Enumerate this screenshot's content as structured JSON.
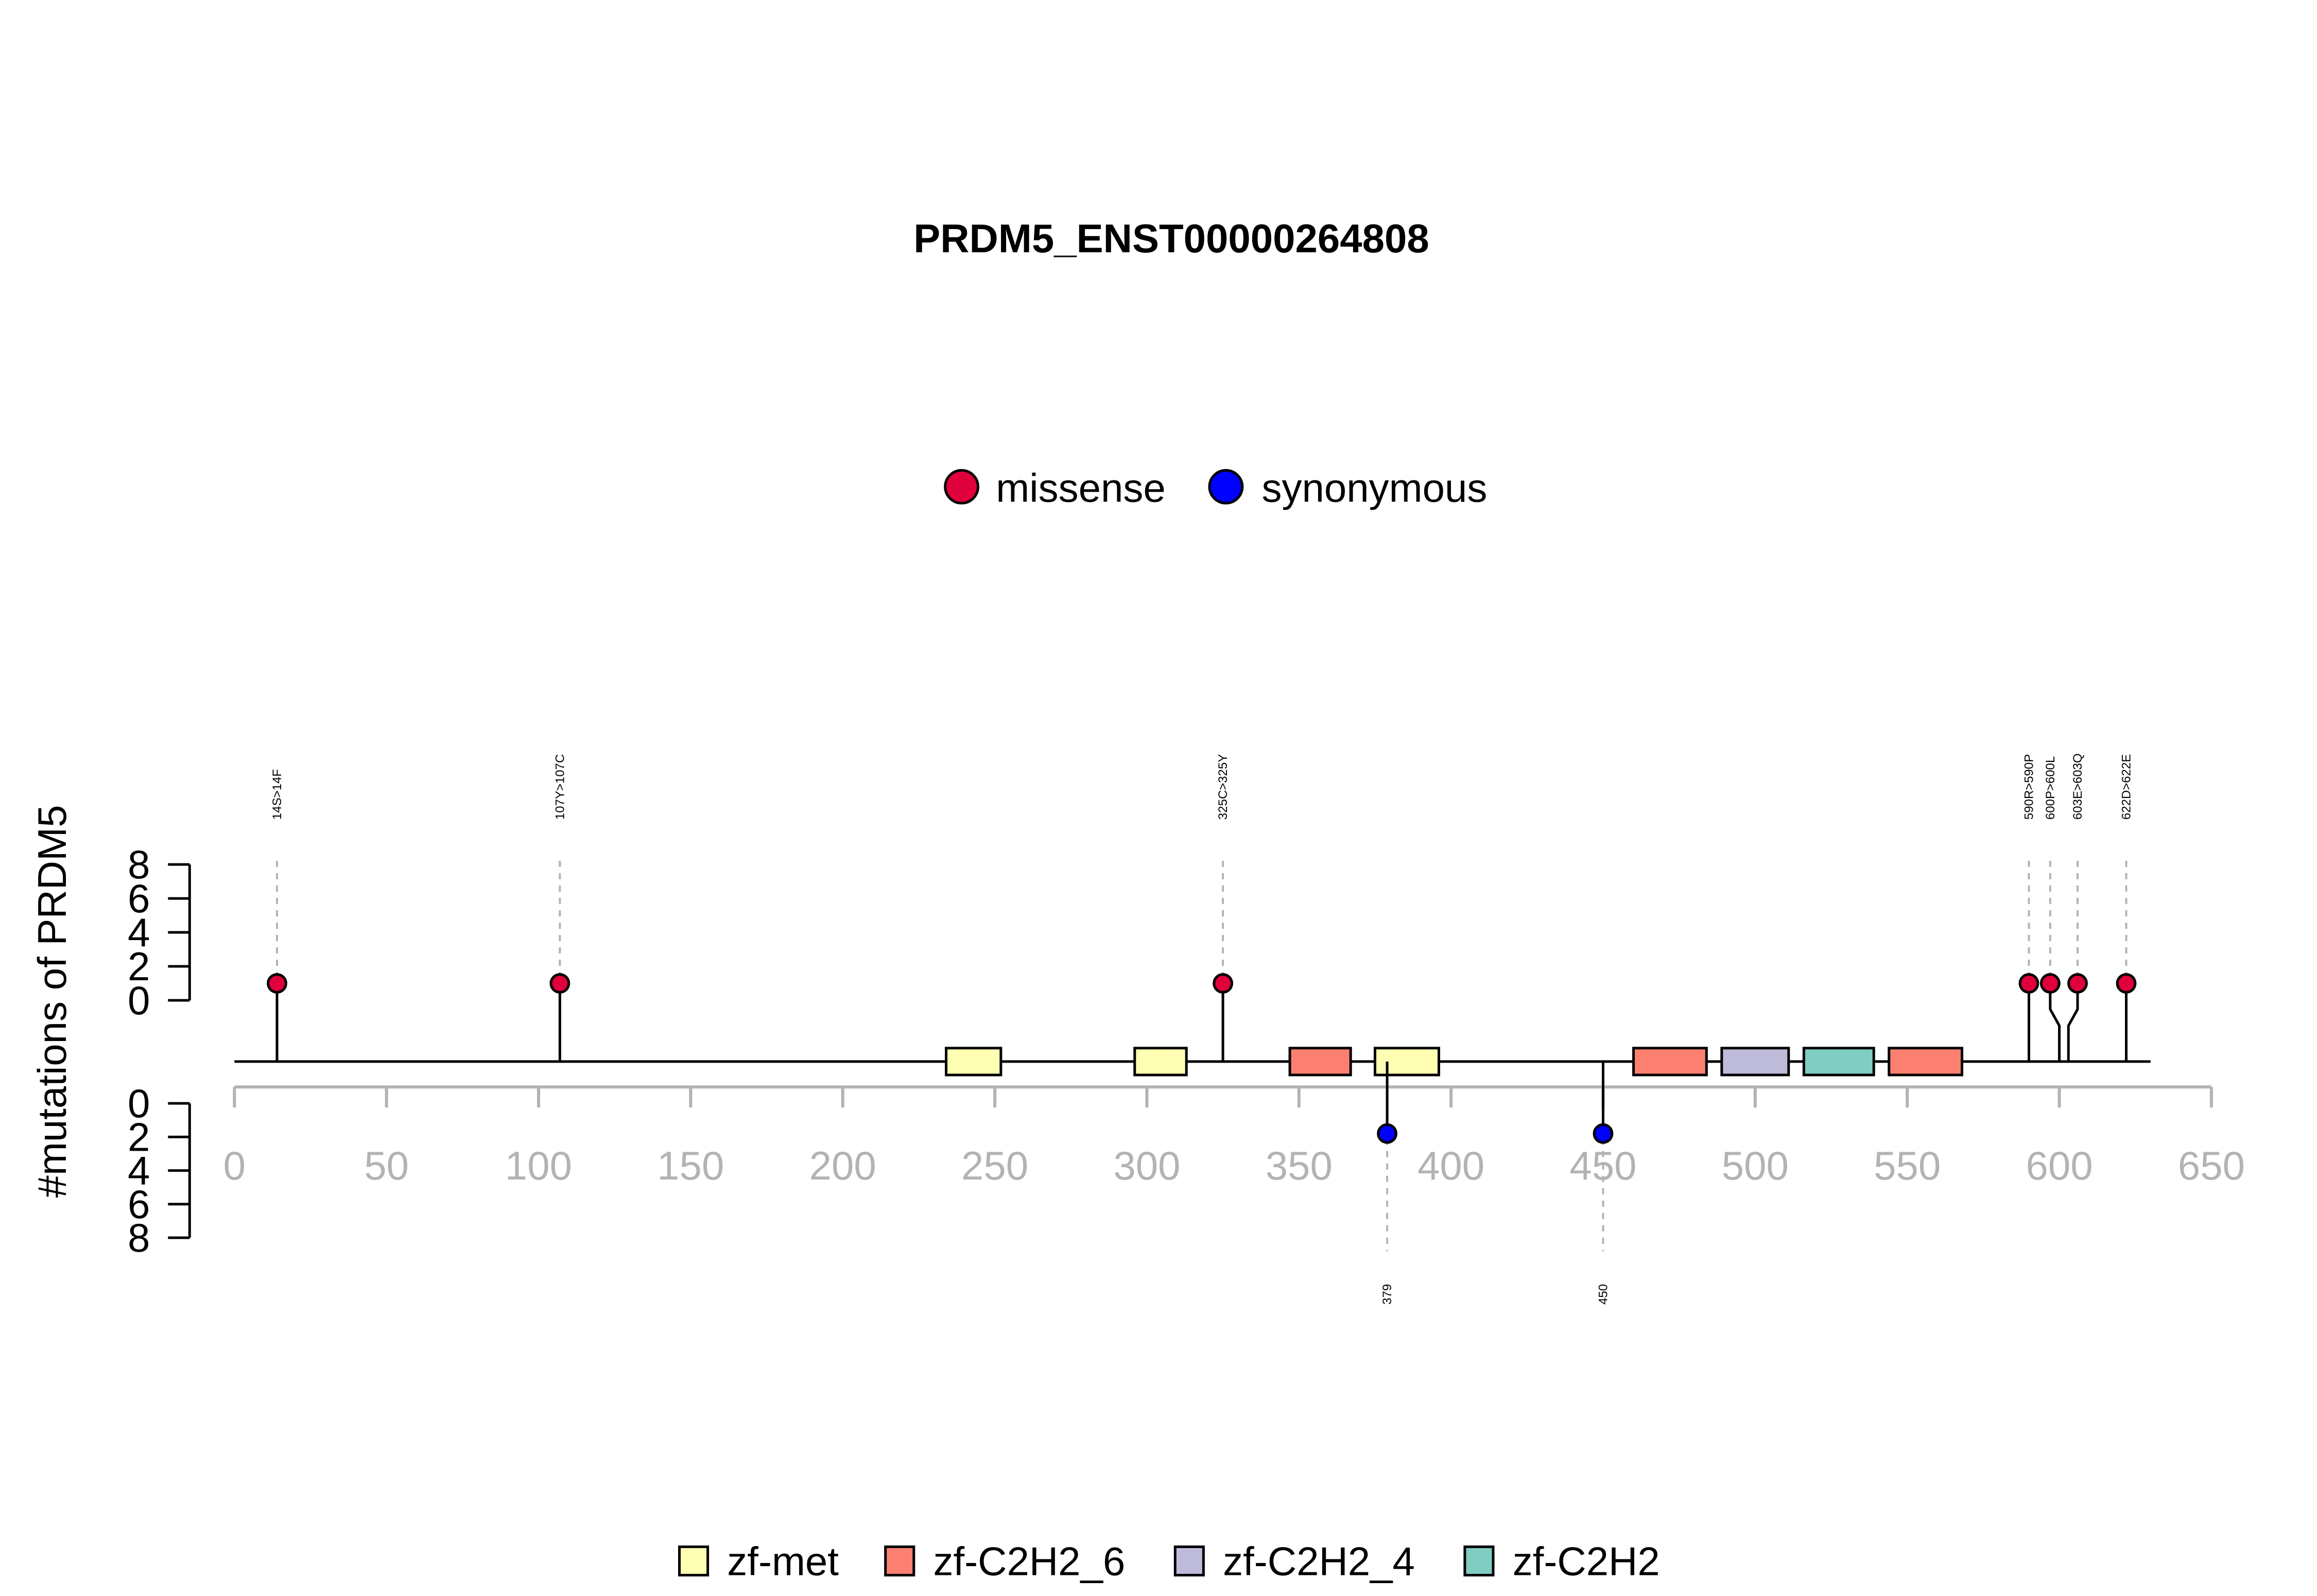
{
  "chart_data": {
    "type": "lollipop",
    "title": "PRDM5_ENST00000264808",
    "ylabel": "#mutations of PRDM5",
    "protein_length": 630,
    "xlim": [
      0,
      650
    ],
    "x_ticks": [
      0,
      50,
      100,
      150,
      200,
      250,
      300,
      350,
      400,
      450,
      500,
      550,
      600,
      650
    ],
    "y_ticks": [
      0,
      2,
      4,
      6,
      8
    ],
    "ylim": [
      0,
      8
    ],
    "mutation_types": [
      {
        "name": "missense",
        "color": "#e0003c"
      },
      {
        "name": "synonymous",
        "color": "#0000ff"
      }
    ],
    "mutations": [
      {
        "pos": 14,
        "count": 1,
        "type": "missense",
        "label": "14S>14F",
        "side": "up"
      },
      {
        "pos": 107,
        "count": 1,
        "type": "missense",
        "label": "107Y>107C",
        "side": "up"
      },
      {
        "pos": 325,
        "count": 1,
        "type": "missense",
        "label": "325C>325Y",
        "side": "up"
      },
      {
        "pos": 590,
        "count": 1,
        "type": "missense",
        "label": "590R>590P",
        "side": "up"
      },
      {
        "pos": 600,
        "count": 1,
        "type": "missense",
        "label": "600P>600L",
        "side": "up"
      },
      {
        "pos": 603,
        "count": 1,
        "type": "missense",
        "label": "603E>603Q",
        "side": "up"
      },
      {
        "pos": 622,
        "count": 1,
        "type": "missense",
        "label": "622D>622E",
        "side": "up"
      },
      {
        "pos": 379,
        "count": 1,
        "type": "synonymous",
        "label": "379",
        "side": "down"
      },
      {
        "pos": 450,
        "count": 1,
        "type": "synonymous",
        "label": "450",
        "side": "down"
      }
    ],
    "domain_types": [
      {
        "name": "zf-met",
        "color": "#ffffb3"
      },
      {
        "name": "zf-C2H2_6",
        "color": "#fb8072"
      },
      {
        "name": "zf-C2H2_4",
        "color": "#bebada"
      },
      {
        "name": "zf-C2H2",
        "color": "#80cdc1"
      }
    ],
    "domains": [
      {
        "name": "zf-met",
        "start": 234,
        "end": 252
      },
      {
        "name": "zf-met",
        "start": 296,
        "end": 313
      },
      {
        "name": "zf-C2H2_6",
        "start": 347,
        "end": 367
      },
      {
        "name": "zf-met",
        "start": 375,
        "end": 396
      },
      {
        "name": "zf-C2H2_6",
        "start": 460,
        "end": 484
      },
      {
        "name": "zf-C2H2_4",
        "start": 489,
        "end": 511
      },
      {
        "name": "zf-C2H2",
        "start": 516,
        "end": 539
      },
      {
        "name": "zf-C2H2_6",
        "start": 544,
        "end": 568
      }
    ]
  }
}
